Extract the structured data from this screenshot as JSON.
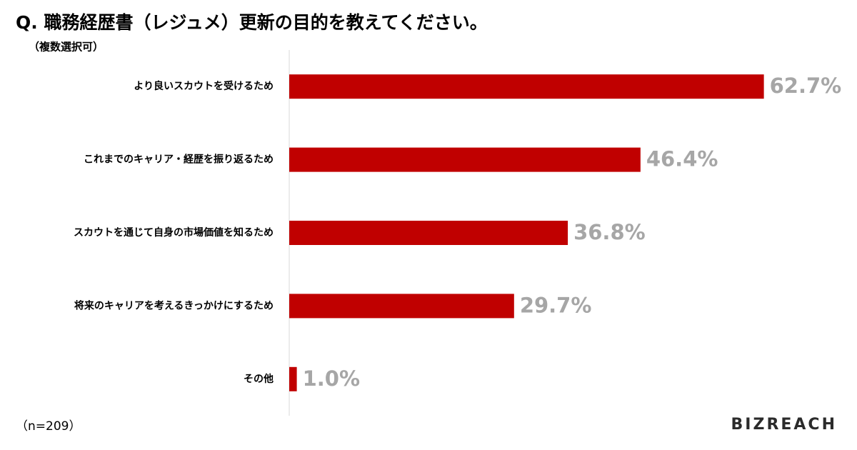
{
  "chart_data": {
    "type": "barh",
    "title": "Q. 職務経歴書（レジュメ）更新の目的を教えてください。",
    "subtitle": "（複数選択可）",
    "note": "（n=209）",
    "logo": "BIZREACH",
    "categories": [
      "より良いスカウトを受けるため",
      "これまでのキャリア・経歴を振り返るため",
      "スカウトを通じて自身の市場価値を知るため",
      "将来のキャリアを考えるきっかけにするため",
      "その他"
    ],
    "values": [
      62.7,
      46.4,
      36.8,
      29.7,
      1.0
    ],
    "value_labels": [
      "62.7%",
      "46.4%",
      "36.8%",
      "29.7%",
      "1.0%"
    ],
    "color": "#c00000",
    "label_color": "#a6a6a6",
    "xlim": [
      0,
      70
    ]
  }
}
